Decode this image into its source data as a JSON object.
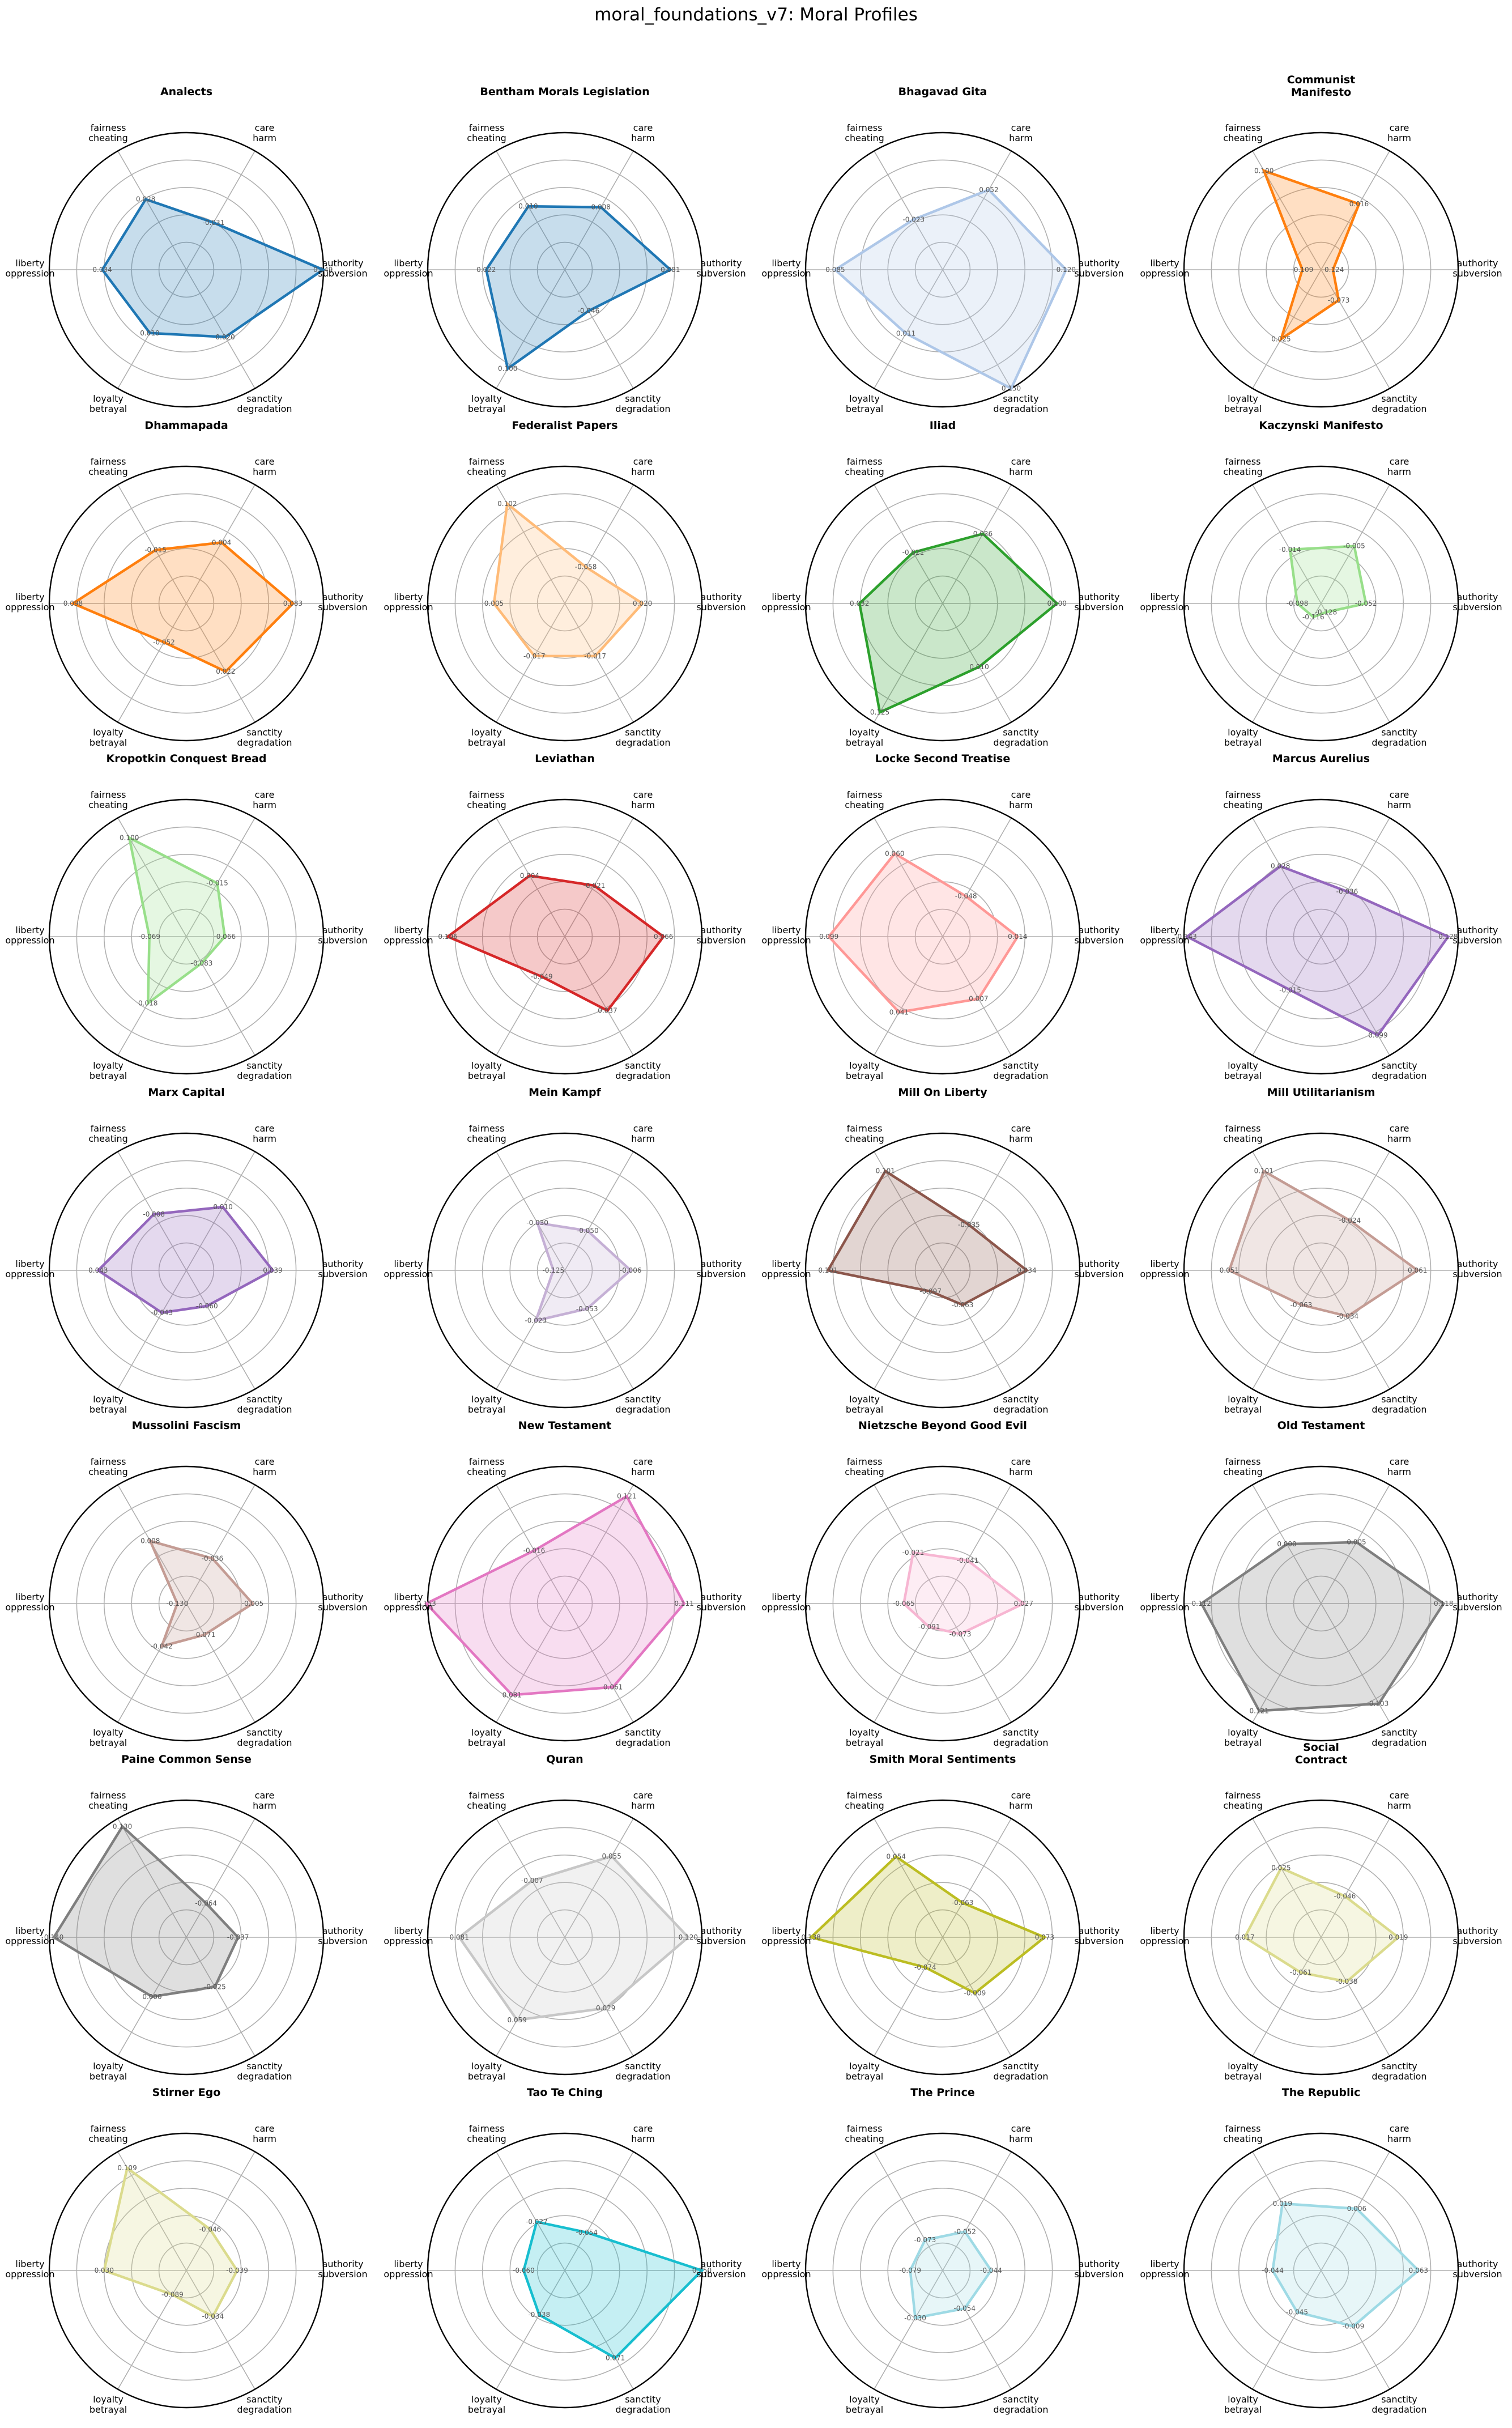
{
  "suptitle": "moral_foundations_v7: Moral Profiles",
  "chart_data": {
    "type": "radar",
    "axes": [
      [
        "care",
        "harm"
      ],
      [
        "fairness",
        "cheating"
      ],
      [
        "liberty",
        "oppression"
      ],
      [
        "loyalty",
        "betrayal"
      ],
      [
        "sanctity",
        "degradation"
      ],
      [
        "authority",
        "subversion"
      ]
    ],
    "rlim": [
      -0.15,
      0.15
    ],
    "grid": true,
    "note_order": "values per panel follow axes order: care, fairness, liberty, loyalty, sanctity, authority",
    "panels": [
      {
        "title": "Analects",
        "color": "#1f77b4",
        "values": [
          -0.031,
          0.028,
          0.034,
          0.01,
          0.02,
          0.149
        ],
        "labels": [
          "-0.031",
          "0.028",
          "0.034",
          "0.010",
          "0.020",
          "0.149"
        ]
      },
      {
        "title": "Bentham Morals Legislation",
        "color": "#1f77b4",
        "values": [
          0.008,
          0.01,
          0.022,
          0.1,
          -0.046,
          0.081
        ],
        "labels": [
          "0.008",
          "0.010",
          "0.022",
          "0.100",
          "-0.046",
          "0.081"
        ]
      },
      {
        "title": "Bhagavad Gita",
        "color": "#aec7e8",
        "values": [
          0.052,
          -0.023,
          0.085,
          0.011,
          0.15,
          0.12
        ],
        "labels": [
          "0.052",
          "-0.023",
          "0.085",
          "0.011",
          "0.150",
          "0.120"
        ]
      },
      {
        "title": "Communist\nManifesto",
        "color": "#ff7f0e",
        "values": [
          0.016,
          0.1,
          -0.109,
          0.025,
          -0.073,
          -0.124
        ],
        "labels": [
          "0.016",
          "0.100",
          "-0.109",
          "0.025",
          "-0.073",
          "-0.124"
        ]
      },
      {
        "title": "Dhammapada",
        "color": "#ff7f0e",
        "values": [
          0.004,
          -0.015,
          0.098,
          -0.052,
          0.022,
          0.083
        ],
        "labels": [
          "0.004",
          "-0.015",
          "0.098",
          "-0.052",
          "0.022",
          "0.083"
        ]
      },
      {
        "title": "Federalist Papers",
        "color": "#ffbb78",
        "values": [
          -0.058,
          0.102,
          0.005,
          -0.017,
          -0.017,
          0.02
        ],
        "labels": [
          "-0.058",
          "0.102",
          "0.005",
          "-0.017",
          "-0.017",
          "0.020"
        ]
      },
      {
        "title": "Iliad",
        "color": "#2ca02c",
        "values": [
          0.026,
          -0.021,
          0.032,
          0.125,
          0.01,
          0.1
        ],
        "labels": [
          "0.026",
          "-0.021",
          "0.032",
          "0.125",
          "0.010",
          "0.100"
        ]
      },
      {
        "title": "Kaczynski Manifesto",
        "color": "#98df8a",
        "values": [
          -0.005,
          -0.014,
          -0.098,
          -0.116,
          -0.128,
          -0.052
        ],
        "labels": [
          "-0.005",
          "-0.014",
          "-0.098",
          "-0.116",
          "-0.128",
          "-0.052"
        ]
      },
      {
        "title": "Kropotkin Conquest Bread",
        "color": "#98df8a",
        "values": [
          -0.015,
          0.1,
          -0.069,
          0.018,
          -0.083,
          -0.066
        ],
        "labels": [
          "-0.015",
          "0.100",
          "-0.069",
          "0.018",
          "-0.083",
          "-0.066"
        ]
      },
      {
        "title": "Leviathan",
        "color": "#d62728",
        "values": [
          -0.021,
          0.004,
          0.106,
          -0.049,
          0.037,
          0.066
        ],
        "labels": [
          "-0.021",
          "0.004",
          "0.106",
          "-0.049",
          "0.037",
          "0.066"
        ]
      },
      {
        "title": "Locke Second Treatise",
        "color": "#ff9896",
        "values": [
          -0.048,
          0.06,
          0.099,
          0.041,
          0.007,
          0.014
        ],
        "labels": [
          "-0.048",
          "0.060",
          "0.099",
          "0.041",
          "0.007",
          "0.014"
        ]
      },
      {
        "title": "Marcus Aurelius",
        "color": "#9467bd",
        "values": [
          -0.036,
          0.028,
          0.143,
          -0.015,
          0.099,
          0.128
        ],
        "labels": [
          "-0.036",
          "0.028",
          "0.143",
          "-0.015",
          "0.099",
          "0.128"
        ]
      },
      {
        "title": "Marx Capital",
        "color": "#9467bd",
        "values": [
          0.01,
          -0.008,
          0.043,
          -0.043,
          -0.06,
          0.039
        ],
        "labels": [
          "0.010",
          "-0.008",
          "0.043",
          "-0.043",
          "-0.060",
          "0.039"
        ]
      },
      {
        "title": "Mein Kampf",
        "color": "#c5b0d5",
        "values": [
          -0.05,
          -0.03,
          -0.125,
          -0.023,
          -0.053,
          -0.006
        ],
        "labels": [
          "-0.050",
          "-0.030",
          "-0.125",
          "-0.023",
          "-0.053",
          "-0.006"
        ]
      },
      {
        "title": "Mill On Liberty",
        "color": "#8c564b",
        "values": [
          -0.035,
          0.101,
          0.101,
          -0.097,
          -0.063,
          0.034
        ],
        "labels": [
          "-0.035",
          "0.101",
          "0.101",
          "-0.097",
          "-0.063",
          "0.034"
        ]
      },
      {
        "title": "Mill Utilitarianism",
        "color": "#c49c94",
        "values": [
          -0.024,
          0.101,
          0.051,
          -0.063,
          -0.034,
          0.061
        ],
        "labels": [
          "-0.024",
          "0.101",
          "0.051",
          "-0.063",
          "-0.034",
          "0.061"
        ]
      },
      {
        "title": "Mussolini Fascism",
        "color": "#c49c94",
        "values": [
          -0.036,
          0.008,
          -0.13,
          -0.042,
          -0.071,
          -0.005
        ],
        "labels": [
          "-0.036",
          "0.008",
          "-0.130",
          "-0.042",
          "-0.071",
          "-0.005"
        ]
      },
      {
        "title": "New Testament",
        "color": "#e377c2",
        "values": [
          0.121,
          -0.016,
          0.153,
          0.081,
          0.061,
          0.111
        ],
        "labels": [
          "0.121",
          "-0.016",
          "0.153",
          "0.081",
          "0.061",
          "0.111"
        ]
      },
      {
        "title": "Nietzsche Beyond Good Evil",
        "color": "#f7b6d2",
        "values": [
          -0.041,
          -0.021,
          -0.065,
          -0.091,
          -0.073,
          0.027
        ],
        "labels": [
          "-0.041",
          "-0.021",
          "-0.065",
          "-0.091",
          "-0.073",
          "0.027"
        ]
      },
      {
        "title": "Old Testament",
        "color": "#7f7f7f",
        "values": [
          0.005,
          0.0,
          0.112,
          0.121,
          0.103,
          0.118
        ],
        "labels": [
          "0.005",
          "0.000",
          "0.112",
          "0.121",
          "0.103",
          "0.118"
        ]
      },
      {
        "title": "Paine Common Sense",
        "color": "#7f7f7f",
        "values": [
          -0.064,
          0.13,
          0.14,
          0.0,
          -0.025,
          -0.037
        ],
        "labels": [
          "-0.064",
          "0.130",
          "0.140",
          "0.000",
          "-0.025",
          "-0.037"
        ]
      },
      {
        "title": "Quran",
        "color": "#c7c7c7",
        "values": [
          0.055,
          -0.007,
          0.081,
          0.059,
          0.029,
          0.12
        ],
        "labels": [
          "0.055",
          "-0.007",
          "0.081",
          "0.059",
          "0.029",
          "0.120"
        ]
      },
      {
        "title": "Smith Moral Sentiments",
        "color": "#bcbd22",
        "values": [
          -0.063,
          0.054,
          0.138,
          -0.074,
          -0.009,
          0.073
        ],
        "labels": [
          "-0.063",
          "0.054",
          "0.138",
          "-0.074",
          "-0.009",
          "0.073"
        ]
      },
      {
        "title": "Social\nContract",
        "color": "#dbdb8d",
        "values": [
          -0.046,
          0.025,
          0.017,
          -0.061,
          -0.038,
          0.019
        ],
        "labels": [
          "-0.046",
          "0.025",
          "0.017",
          "-0.061",
          "-0.038",
          "0.019"
        ]
      },
      {
        "title": "Stirner Ego",
        "color": "#dbdb8d",
        "values": [
          -0.046,
          0.109,
          0.03,
          -0.089,
          -0.034,
          -0.039
        ],
        "labels": [
          "-0.046",
          "0.109",
          "0.030",
          "-0.089",
          "-0.034",
          "-0.039"
        ]
      },
      {
        "title": "Tao Te Ching",
        "color": "#17becf",
        "values": [
          -0.054,
          -0.027,
          -0.06,
          -0.038,
          0.071,
          0.15
        ],
        "labels": [
          "-0.054",
          "-0.027",
          "-0.060",
          "-0.038",
          "0.071",
          "0.150"
        ]
      },
      {
        "title": "The Prince",
        "color": "#9edae5",
        "values": [
          -0.052,
          -0.073,
          -0.079,
          -0.03,
          -0.054,
          -0.044
        ],
        "labels": [
          "-0.052",
          "-0.073",
          "-0.079",
          "-0.030",
          "-0.054",
          "-0.044"
        ]
      },
      {
        "title": "The Republic",
        "color": "#9edae5",
        "values": [
          0.006,
          0.019,
          -0.044,
          -0.045,
          -0.009,
          0.063
        ],
        "labels": [
          "0.006",
          "0.019",
          "-0.044",
          "-0.045",
          "-0.009",
          "0.063"
        ]
      }
    ]
  }
}
